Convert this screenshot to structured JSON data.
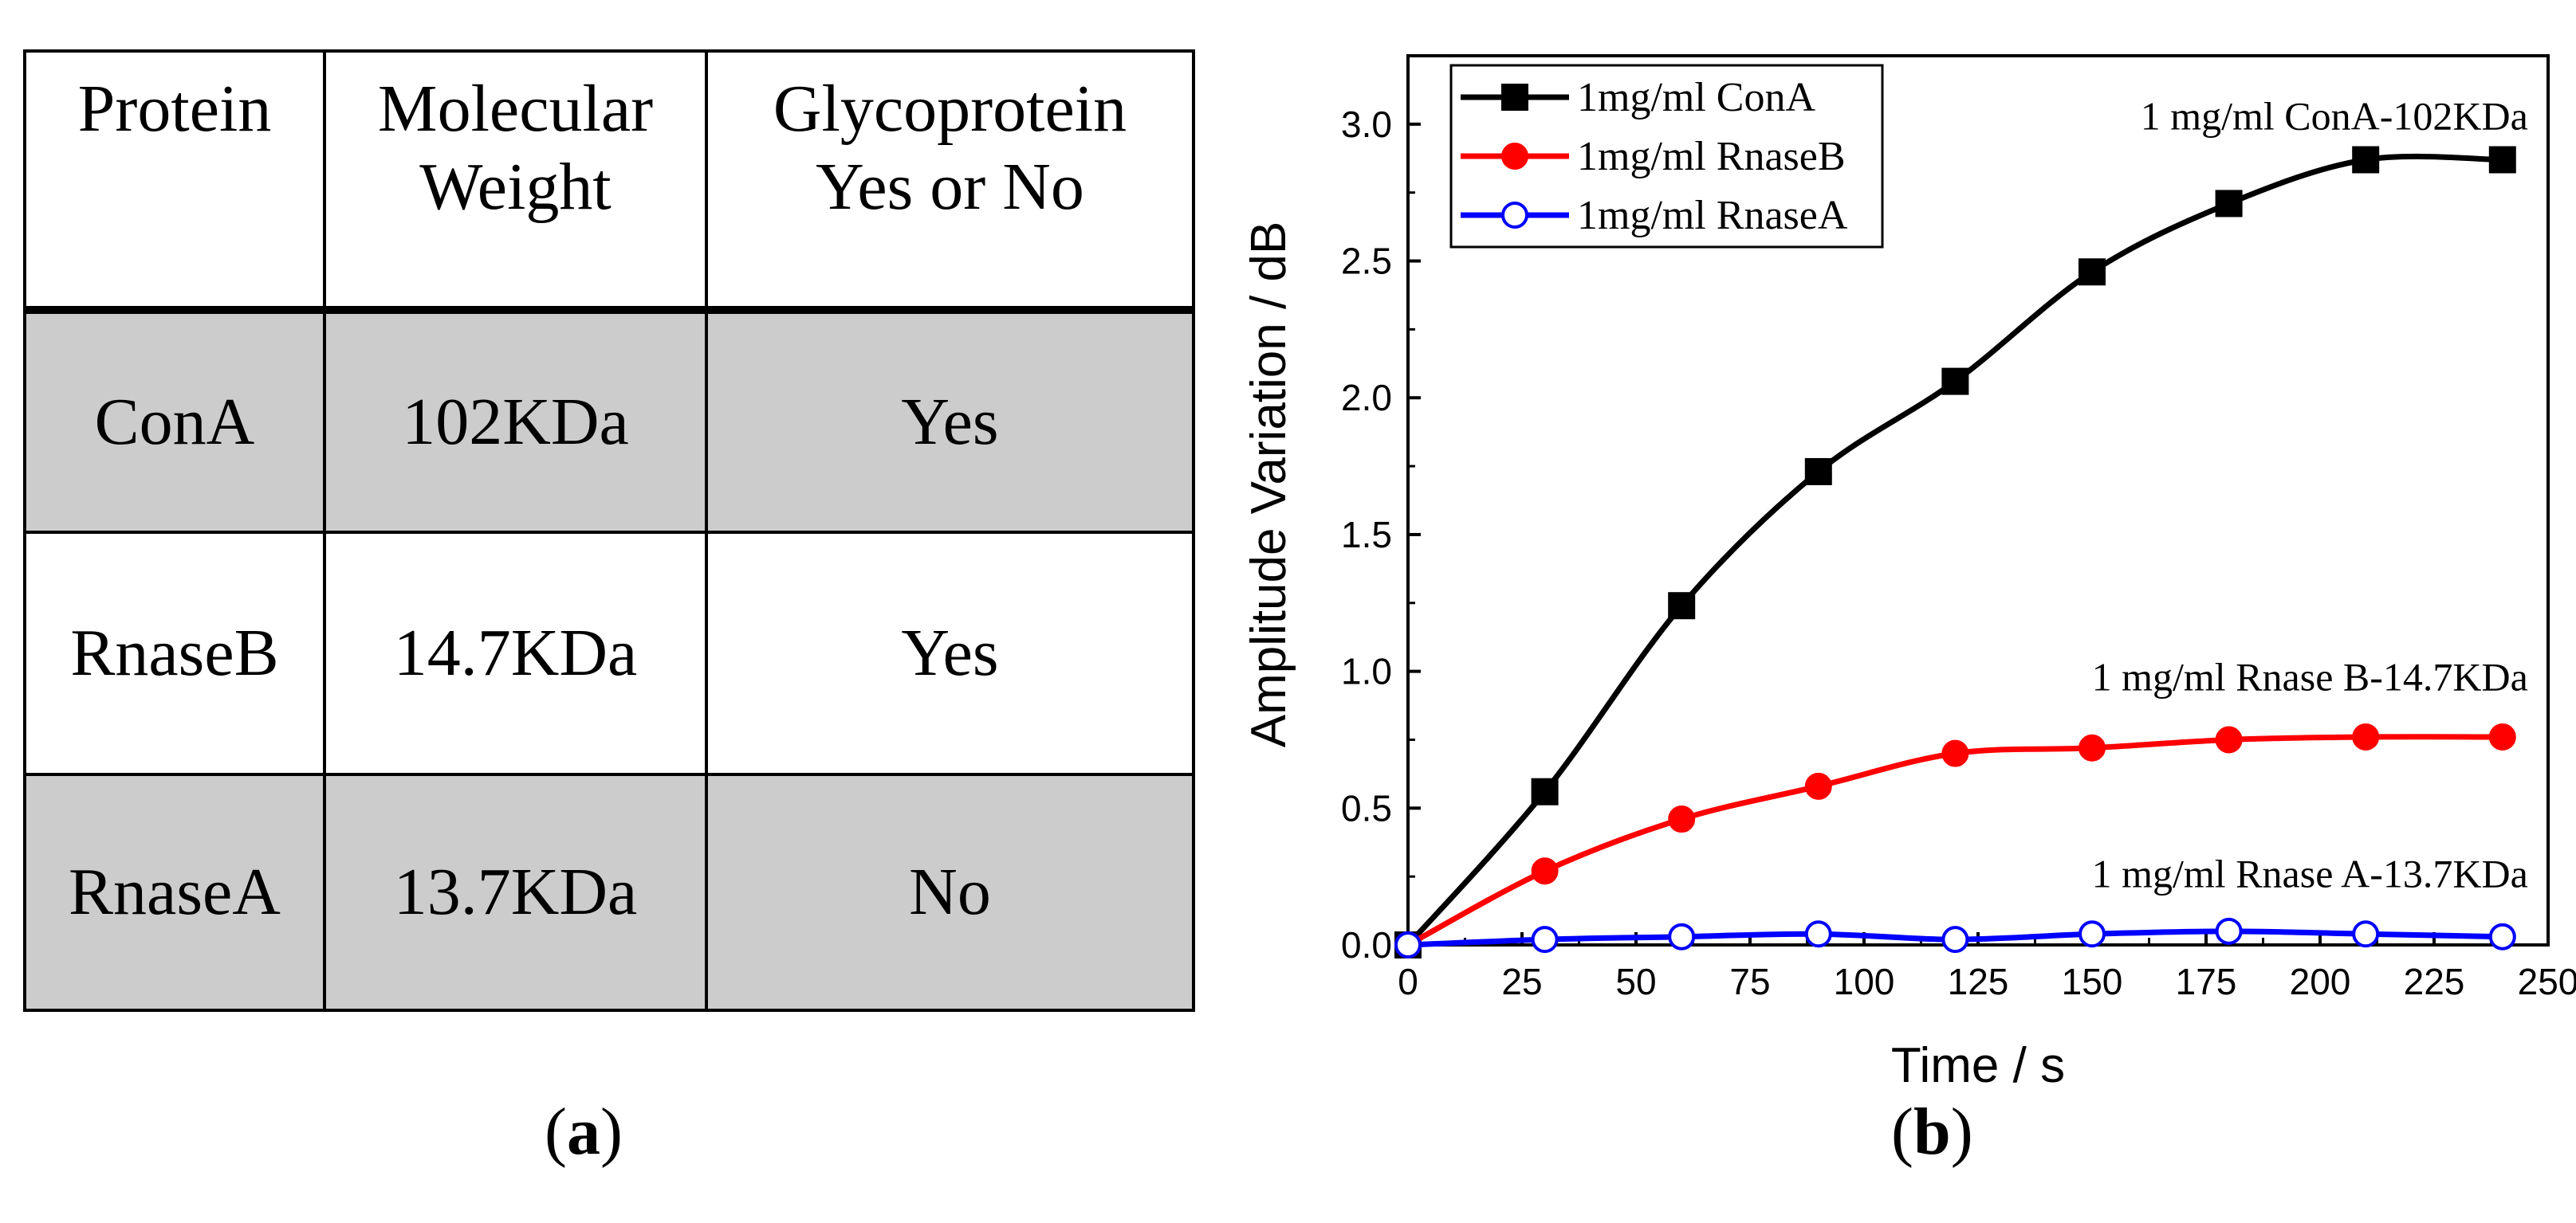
{
  "panels": {
    "a_label": "a",
    "b_label": "b"
  },
  "table": {
    "headers": [
      [
        "Protein"
      ],
      [
        "Molecular",
        "Weight"
      ],
      [
        "Glycoprotein",
        "Yes or No"
      ]
    ],
    "rows": [
      [
        "ConA",
        "102KDa",
        "Yes"
      ],
      [
        "RnaseB",
        "14.7KDa",
        "Yes"
      ],
      [
        "RnaseA",
        "13.7KDa",
        "No"
      ]
    ],
    "shade_color": "#cccccc"
  },
  "chart_data": {
    "type": "line",
    "xlabel": "Time / s",
    "ylabel": "Amplitude Variation / dB",
    "xlim": [
      0,
      250
    ],
    "ylim": [
      0,
      3.25
    ],
    "xticks": [
      0,
      25,
      50,
      75,
      100,
      125,
      150,
      175,
      200,
      225,
      250
    ],
    "yticks": [
      0.0,
      0.5,
      1.0,
      1.5,
      2.0,
      2.5,
      3.0
    ],
    "ytick_labels": [
      "0.0",
      "0.5",
      "1.0",
      "1.5",
      "2.0",
      "2.5",
      "3.0"
    ],
    "x": [
      0,
      30,
      60,
      90,
      120,
      150,
      180,
      210,
      240
    ],
    "series": [
      {
        "name": "1mg/ml ConA",
        "color": "#000000",
        "marker": "square-filled",
        "values": [
          0.0,
          0.56,
          1.24,
          1.73,
          2.06,
          2.46,
          2.71,
          2.87,
          2.87
        ]
      },
      {
        "name": "1mg/ml RnaseB",
        "color": "#ff0000",
        "marker": "circle-filled",
        "values": [
          0.0,
          0.27,
          0.46,
          0.58,
          0.7,
          0.72,
          0.75,
          0.76,
          0.76
        ]
      },
      {
        "name": "1mg/ml RnaseA",
        "color": "#0000ff",
        "marker": "circle-open",
        "values": [
          0.0,
          0.02,
          0.03,
          0.04,
          0.02,
          0.04,
          0.05,
          0.04,
          0.03
        ]
      }
    ],
    "annotations": [
      {
        "text": "1 mg/ml ConA-102KDa",
        "x": 240,
        "y": 3.03
      },
      {
        "text": "1 mg/ml Rnase B-14.7KDa",
        "x": 240,
        "y": 0.98
      },
      {
        "text": "1 mg/ml Rnase A-13.7KDa",
        "x": 240,
        "y": 0.26
      }
    ],
    "legend_position": "top-left",
    "grid": false
  }
}
